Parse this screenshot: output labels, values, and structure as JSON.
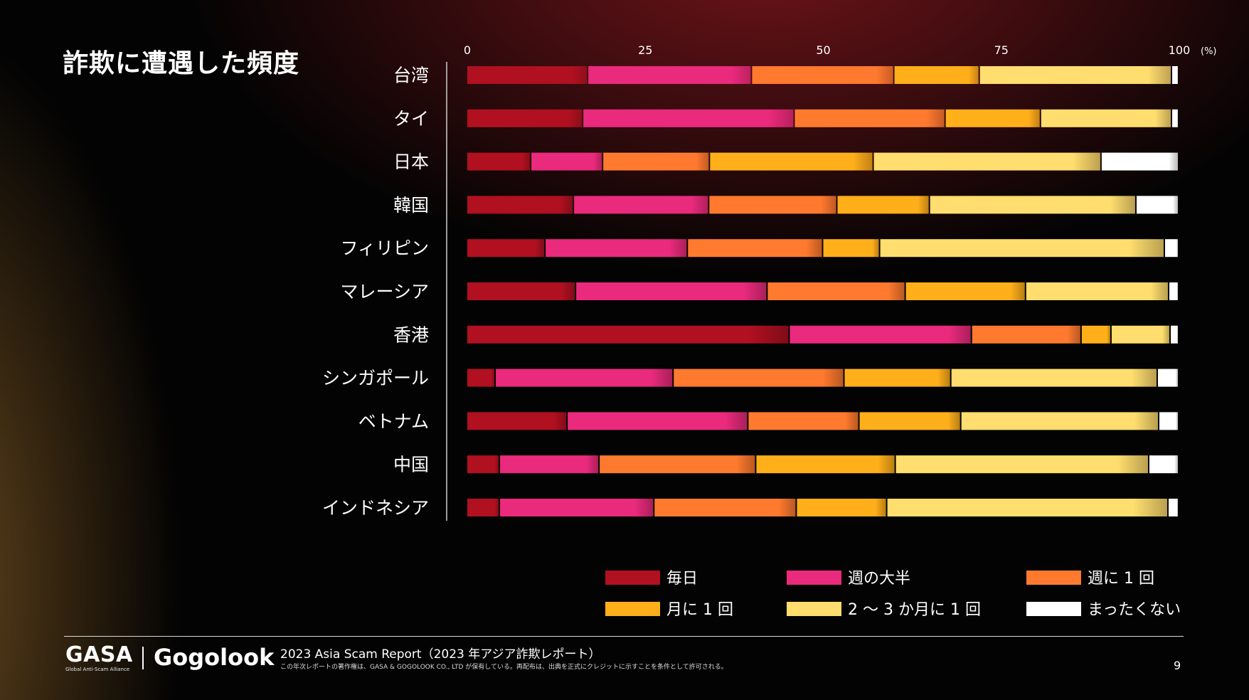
{
  "chart_data": {
    "type": "bar",
    "orientation": "horizontal",
    "stacked": true,
    "title": "詐欺に遭遇した頻度",
    "unit": "(%)",
    "xlim": [
      0,
      100
    ],
    "x_ticks": [
      0,
      25,
      50,
      75,
      100
    ],
    "categories": [
      "台湾",
      "タイ",
      "日本",
      "韓国",
      "フィリピン",
      "マレーシア",
      "香港",
      "シンガポール",
      "ベトナム",
      "中国",
      "インドネシア"
    ],
    "series": [
      {
        "name": "毎日",
        "color": "#b01020",
        "values": [
          17,
          16.3,
          9,
          15,
          11,
          15.3,
          45.3,
          4,
          14.1,
          4.6,
          4.6
        ]
      },
      {
        "name": "週の大半",
        "color": "#ea2a7c",
        "values": [
          23,
          29.7,
          10.1,
          19,
          20,
          26.9,
          25.6,
          25,
          25.4,
          14,
          21.7
        ]
      },
      {
        "name": "週に 1 回",
        "color": "#ff7a2e",
        "values": [
          20,
          21.2,
          15,
          18,
          19,
          19.4,
          15.4,
          24,
          15.6,
          22,
          20
        ]
      },
      {
        "name": "月に 1 回",
        "color": "#ffaf1a",
        "values": [
          12,
          13.4,
          23,
          13,
          8,
          16.9,
          4.2,
          15,
          14.3,
          19.6,
          12.7
        ]
      },
      {
        "name": "2 ～ 3 か月に 1 回",
        "color": "#ffdd6e",
        "values": [
          27,
          18.4,
          32,
          29,
          40,
          20.1,
          8.3,
          29,
          27.8,
          35.6,
          39.5
        ]
      },
      {
        "name": "まったくない",
        "color": "#ffffff",
        "values": [
          1,
          1,
          10.9,
          6,
          2,
          1.4,
          1.2,
          3,
          2.8,
          4.2,
          1.5
        ]
      }
    ]
  },
  "footer": {
    "gasa_logo": "GASA",
    "gasa_tagline": "Global Anti-Scam Alliance",
    "gogolook_logo": "Gogolook",
    "report_title": "2023 Asia Scam Report（2023 年アジア詐欺レポート）",
    "copyright": "この年次レポートの著作権は、GASA & GOGOLOOK CO., LTD が保有している。再配布は、出典を正式にクレジットに示すことを条件として許可される。",
    "page_number": "9"
  }
}
